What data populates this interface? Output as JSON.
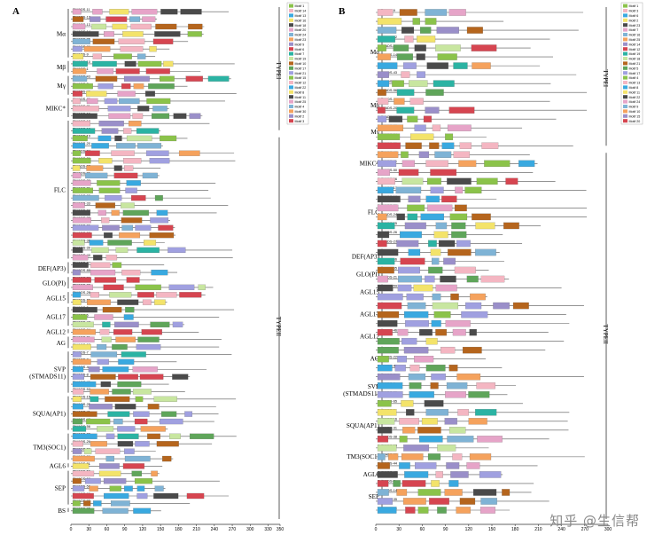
{
  "panels": [
    {
      "letter": "A",
      "scale_max": 350,
      "ticks": [
        0,
        30,
        60,
        90,
        120,
        150,
        180,
        210,
        240,
        270,
        300,
        330,
        350
      ],
      "type_labels": [
        "TYPEI",
        "TYPEII"
      ],
      "type_split": 17,
      "groups": [
        {
          "label": "Mα",
          "start": 0,
          "count": 7
        },
        {
          "label": "Mβ",
          "start": 7,
          "count": 2
        },
        {
          "label": "Mγ",
          "start": 9,
          "count": 3
        },
        {
          "label": "MIKC*",
          "start": 12,
          "count": 3
        },
        {
          "label": "FLC",
          "start": 15,
          "count": 19
        },
        {
          "label": "DEF(AP3)",
          "start": 34,
          "count": 2
        },
        {
          "label": "GLO(PI)",
          "start": 36,
          "count": 2
        },
        {
          "label": "AGL15",
          "start": 38,
          "count": 2
        },
        {
          "label": "AGL17",
          "start": 40,
          "count": 3
        },
        {
          "label": "AGL12",
          "start": 43,
          "count": 1
        },
        {
          "label": "AG",
          "start": 44,
          "count": 2
        },
        {
          "label": "SVP\n(STMADS11)",
          "start": 46,
          "count": 6
        },
        {
          "label": "SQUA(AP1)",
          "start": 52,
          "count": 5
        },
        {
          "label": "TM3(SOC1)",
          "start": 57,
          "count": 4
        },
        {
          "label": "AGL6",
          "start": 61,
          "count": 1
        },
        {
          "label": "SEP",
          "start": 62,
          "count": 5
        },
        {
          "label": "BS",
          "start": 67,
          "count": 1
        }
      ],
      "genes": [
        "TtMADS-11",
        "TtMADS-12",
        "TtMADS-13",
        "TtMADS-14",
        "TtMADS-85",
        "TtMADS-86",
        "TtMADS-9",
        "TtMADS-10",
        "TtMADS-1",
        "TtMADS-43",
        "TtMADS-2",
        "TtMADS-49",
        "TtMADS-80",
        "TtMADS-81",
        "TtMADS-16",
        "TtMADS-17",
        "TtMADS-18",
        "TtMADS-19",
        "TtMADS-20",
        "TtMADS-24",
        "TtMADS-26",
        "TtMADS-27",
        "TtMADS-29",
        "TtMADS-30",
        "TtMADS-31",
        "TtMADS-32",
        "TtMADS-33",
        "TtMADS-34",
        "TtMADS-35",
        "TtMADS-36",
        "TtMADS-37",
        "TtMADS-38",
        "TtMADS-39",
        "TtMADS-40",
        "TtMADS-87",
        "TtMADS-88",
        "TtMADS-21",
        "TtMADS-22",
        "TtMADS-28",
        "TtMADS-30",
        "TtMADS-5",
        "TtMADS-6",
        "TtMADS-47",
        "TtMADS-84",
        "TtMADS-21",
        "TtMADS-57",
        "TtMADS-7",
        "TtMADS-3",
        "TtMADS-4",
        "TtMADS-8",
        "TtMADS-46",
        "TtMADS-52",
        "TtMADS-15",
        "TtMADS-25",
        "TtMADS-41",
        "TtMADS-48",
        "TtMADS-56",
        "TtMADS-23",
        "TtMADS-26",
        "TtMADS-29",
        "TtMADS-30",
        "TtMADS-51",
        "TtMADS-50",
        "TtMADS-58",
        "TtMADS-59",
        "TtMADS-60",
        "TtMADS-83",
        "TtMADS-95"
      ],
      "motif_legend": [
        "Motif 1",
        "Motif 14",
        "Motif 13",
        "Motif 16",
        "Motif 18",
        "Motif 20",
        "Motif 24",
        "Motif 23",
        "Motif 9",
        "Motif 6",
        "Motif 7",
        "Motif 19",
        "Motif 10",
        "Motif 17",
        "Motif 21",
        "Motif 15",
        "Motif 12",
        "Motif 22",
        "Motif 8",
        "Motif 11",
        "Motif 25",
        "Motif 4",
        "Motif 30",
        "Motif 2",
        "Motif 3"
      ]
    },
    {
      "letter": "B",
      "scale_max": 300,
      "ticks": [
        0,
        30,
        60,
        90,
        120,
        150,
        180,
        210,
        240,
        270,
        300
      ],
      "type_labels": [
        "TYPEI",
        "TYPEII"
      ],
      "type_split": 16,
      "groups": [
        {
          "label": "Mα",
          "start": 0,
          "count": 10
        },
        {
          "label": "Mβ",
          "start": 10,
          "count": 2
        },
        {
          "label": "Mγ",
          "start": 12,
          "count": 4
        },
        {
          "label": "MIKC*",
          "start": 16,
          "count": 3
        },
        {
          "label": "FLC",
          "start": 19,
          "count": 8
        },
        {
          "label": "DEF(AP3)",
          "start": 27,
          "count": 2
        },
        {
          "label": "GLO(PI)",
          "start": 29,
          "count": 2
        },
        {
          "label": "AGL15",
          "start": 31,
          "count": 2
        },
        {
          "label": "AGL17",
          "start": 33,
          "count": 3
        },
        {
          "label": "AGL12",
          "start": 36,
          "count": 2
        },
        {
          "label": "AG",
          "start": 38,
          "count": 3
        },
        {
          "label": "SVP\n(STMADS11)",
          "start": 41,
          "count": 4
        },
        {
          "label": "SQUA(AP1)",
          "start": 45,
          "count": 4
        },
        {
          "label": "TM3(SOC1)",
          "start": 49,
          "count": 3
        },
        {
          "label": "AGL6",
          "start": 52,
          "count": 1
        },
        {
          "label": "SEP",
          "start": 53,
          "count": 4
        }
      ],
      "genes": [
        "TmMADS-9",
        "TmMADS-10",
        "TmMADS-11",
        "TmMADS-12",
        "TmMADS-13",
        "TmMADS-14",
        "TmMADS-15",
        "TmMADS-43",
        "TmMADS-55",
        "TmMADS-56",
        "TmMADS-19",
        "TmMADS-20",
        "TmMADS-32",
        "TmMADS-33",
        "TmMADS-34",
        "TmMADS-35",
        "TmMADS-40",
        "TmMADS-41",
        "TmMADS-50",
        "TmMADS-16",
        "TmMADS-17",
        "TmMADS-18",
        "TmMADS-20",
        "TmMADS-24",
        "TmMADS-25",
        "TmMADS-26",
        "TmMADS-27",
        "TmMADS-27",
        "TmMADS-46",
        "TmMADS-05",
        "TmMADS-21",
        "TmMADS-59",
        "TmMADS-58",
        "TmMADS-1",
        "TmMADS-2",
        "TmMADS-40",
        "TmMADS-46",
        "TmMADS-10",
        "TmMADS-4",
        "TmMADS-22",
        "TmMADS-48",
        "TmMADS-7",
        "TmMADS-8",
        "TmMADS-30",
        "TmMADS-65",
        "TmMADS-6",
        "TmMADS-16",
        "TmMADS-31",
        "TmMADS-38",
        "TmMADS-53",
        "TmMADS-23",
        "TmMADS-44",
        "TmMADS-42",
        "TmMADS-7",
        "TmMADS-14",
        "TmMADS-35",
        "TmMADS-54"
      ],
      "motif_legend": [
        "Motif 1",
        "Motif 3",
        "Motif 6",
        "Motif 2",
        "Motif 23",
        "Motif 7",
        "Motif 16",
        "Motif 25",
        "Motif 14",
        "Motif 12",
        "Motif 19",
        "Motif 18",
        "Motif 21",
        "Motif 5",
        "Motif 17",
        "Motif 4",
        "Motif 13",
        "Motif 8",
        "Motif 11",
        "Motif 22",
        "Motif 24",
        "Motif 9",
        "Motif 10",
        "Motif 15",
        "Motif 20"
      ]
    }
  ],
  "watermark": "知乎 @生信帮",
  "colors": {
    "m1": "#8bc34a",
    "m2": "#f4b6c2",
    "m3": "#39a9e0",
    "m4": "#f3e36a",
    "m5": "#4a4a4a",
    "m6": "#e6a4c8",
    "m7": "#7fb3d5",
    "m8": "#f5a25d",
    "m9": "#9a8fc9",
    "m10": "#d64550",
    "m11": "#2bb3a3",
    "m12": "#c8e6a0",
    "m13": "#b5651d",
    "m14": "#5fa55a",
    "m15": "#a0a0e0"
  }
}
